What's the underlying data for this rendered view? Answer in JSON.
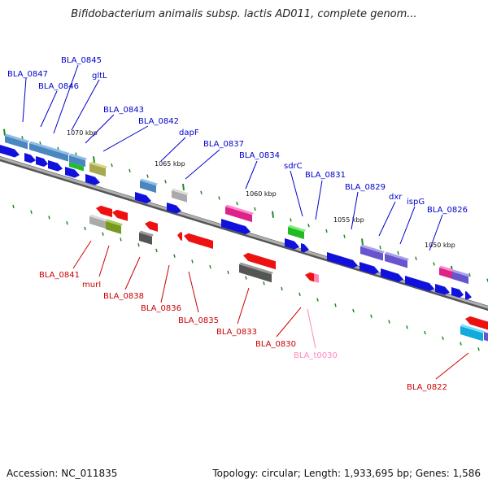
{
  "title": "Bifidobacterium animalis subsp. lactis AD011, complete genom...",
  "footer": {
    "accession": "Accession: NC_011835",
    "topology": "Topology: circular; Length: 1,933,695 bp; Genes: 1,586"
  },
  "ticks": [
    "1070 kbp",
    "1065 kbp",
    "1060 kbp",
    "1055 kbp",
    "1050 kbp"
  ],
  "top_labels": [
    "BLA_0847",
    "BLA_0845",
    "BLA_0846",
    "gltL",
    "BLA_0843",
    "BLA_0842",
    "dapF",
    "BLA_0837",
    "BLA_0834",
    "sdrC",
    "BLA_0831",
    "BLA_0829",
    "dxr",
    "ispG",
    "BLA_0826"
  ],
  "bottom_labels": [
    "BLA_0841",
    "murI",
    "BLA_0838",
    "BLA_0836",
    "BLA_0835",
    "BLA_0833",
    "BLA_0830",
    "BLA_t0030",
    "BLA_0822"
  ],
  "colors": {
    "forward_label": "#0000cc",
    "reverse_label": "#cc0000",
    "trna_label": "#ff88bb",
    "backbone": "#8a8a8a",
    "tick_mark": "#228822"
  }
}
